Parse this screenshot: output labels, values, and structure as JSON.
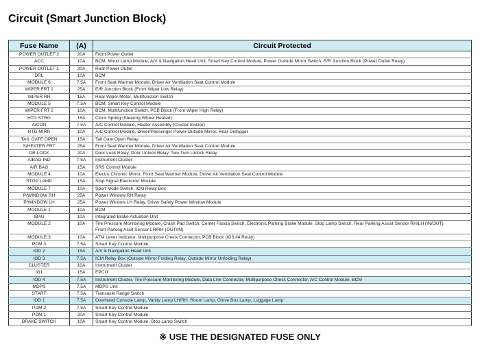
{
  "title": "Circuit (Smart Junction Block)",
  "columns": [
    "Fuse Name",
    "(A)",
    "Circuit Protected"
  ],
  "highlight_color": "#cdeaf1",
  "rows": [
    {
      "name": "POWER OUTLET 2",
      "amp": "20A",
      "circuit": "Front Power Outlet"
    },
    {
      "name": "ACC",
      "amp": "10A",
      "circuit": "BCM, Mood Lamp Module, A/V & Navigation Head Unit, Smart Key Control Module, Power Outside Mirror Switch, E/R Junction Block (Power Outlet Relay)"
    },
    {
      "name": "POWER OUTLET 1",
      "amp": "20A",
      "circuit": "Rear Power Outlet"
    },
    {
      "name": "DRL",
      "amp": "10A",
      "circuit": "BCM"
    },
    {
      "name": "MODULE 6",
      "amp": "7.5A",
      "circuit": "Front Seat Warmer Module, Driver Air Ventilation Seat Control Module"
    },
    {
      "name": "WIPER FRT 1",
      "amp": "25A",
      "circuit": "E/R Junction Block (Front Wiper Low Relay)"
    },
    {
      "name": "WIPER RR",
      "amp": "15A",
      "circuit": "Rear Wiper Motor, Multifunction Switch"
    },
    {
      "name": "MODULE 5",
      "amp": "7.5A",
      "circuit": "BCM, Smart Key Control Module"
    },
    {
      "name": "WIPER FRT 2",
      "amp": "10A",
      "circuit": "BCM, Multifunction Switch, PCB Block (Front Wiper High Relay)"
    },
    {
      "name": "HTD STRG",
      "amp": "15A",
      "circuit": "Clock Spring (Steering Wheel Heated)"
    },
    {
      "name": "A/CON",
      "amp": "7.5A",
      "circuit": "A/C Control Module, Heater Assembly (Cluster Ionizer)"
    },
    {
      "name": "HTD MIRR",
      "amp": "10A",
      "circuit": "A/C Control Module, Driver/Passenger Power Outside Mirror, Rear Defogger"
    },
    {
      "name": "TAIL GATE OPEN",
      "amp": "15A",
      "circuit": "Tail Gate Open Relay"
    },
    {
      "name": "S/HEATER FRT",
      "amp": "25A",
      "circuit": "Front Seat Warmer Module, Driver Air Ventilation Seat Control Module"
    },
    {
      "name": "DR LOCK",
      "amp": "20A",
      "circuit": "Door Lock Relay, Door Unlock Relay, Two Turn Unlock Relay"
    },
    {
      "name": "A/BAG IND",
      "amp": "7.5A",
      "circuit": "Instrument Cluster"
    },
    {
      "name": "AIR BAG",
      "amp": "15A",
      "circuit": "SRS Control Module"
    },
    {
      "name": "MODULE 4",
      "amp": "10A",
      "circuit": "Electro Chromic Mirror, Front Seat Warmer Module, Driver Air Ventilation Seat Control Module"
    },
    {
      "name": "STOP LAMP",
      "amp": "15A",
      "circuit": "Stop Signal Electronic Module"
    },
    {
      "name": "MODULE 7",
      "amp": "10A",
      "circuit": "Sport Mode Switch, ICM Relay Box"
    },
    {
      "name": "P/WINDOW RH",
      "amp": "25A",
      "circuit": "Power Window RH Relay"
    },
    {
      "name": "P/WINDOW LH",
      "amp": "25A",
      "circuit": "Power Window LH Relay, Driver Safety Power Window Module"
    },
    {
      "name": "MODULE 1",
      "amp": "10A",
      "circuit": "BCM"
    },
    {
      "name": "IBAU",
      "amp": "10A",
      "circuit": "Integrated Brake Actuation Unit"
    },
    {
      "name": "MODULE 2",
      "amp": "10A",
      "circuit": "Tire Pressure Monitoring Module, Crash Pad Switch, Center Fascia Switch, Electronic Parking Brake Module, Stop Lamp Switch, Rear Parking Assist Sensor RH/LH (IN/OUT),",
      "circuit2": "Front Parking Assit Sensor LH/RH (OUT/IN)"
    },
    {
      "name": "MODULE 3",
      "amp": "10A",
      "circuit": "ATM Lever Indicator, Multipurpose Check Connector, PCB Block (IG3 #4 Relay)"
    },
    {
      "name": "PDM 3",
      "amp": "7.5A",
      "circuit": "Smart Key Control Module"
    },
    {
      "name": "IOD 2",
      "amp": "15A",
      "circuit": "A/V & Navigation Head Unit",
      "highlight": true
    },
    {
      "name": "IOD 3",
      "amp": "7.5A",
      "circuit": "ICM Relay Box (Outside Mirror Folding Relay, Outside Mirror Unfolding Relay)",
      "highlight": true
    },
    {
      "name": "CLUSTER",
      "amp": "10A",
      "circuit": "Instrument Cluster"
    },
    {
      "name": "IG1",
      "amp": "15A",
      "circuit": "EPCU"
    },
    {
      "name": "IOD 4",
      "amp": "7.5A",
      "circuit": "Instrument Cluster, Tire Pressure Monitoring Module, Data Link Connector, Multipurpose Check Connector, A/C Control Module, BCM",
      "highlight": true
    },
    {
      "name": "MDPS",
      "amp": "7.5A",
      "circuit": "MDPS Unit"
    },
    {
      "name": "START",
      "amp": "7.5A",
      "circuit": "Transaxle Range Switch"
    },
    {
      "name": "IOD 1",
      "amp": "7.5A",
      "circuit": "Overhead Console Lamp, Vanity Lamp LH/RH, Room Lamp, Glove Box Lamp, Luggage Lamp",
      "highlight": true
    },
    {
      "name": "PDM 2",
      "amp": "7.5A",
      "circuit": "Smart Key Control Module"
    },
    {
      "name": "PDM 1",
      "amp": "20A",
      "circuit": "Smart Key Control Module"
    },
    {
      "name": "BRAKE SWITCH",
      "amp": "10A",
      "circuit": "Smart Key Control Module, Stop Lamp Switch"
    }
  ],
  "footer": "※ USE THE DESIGNATED FUSE ONLY"
}
